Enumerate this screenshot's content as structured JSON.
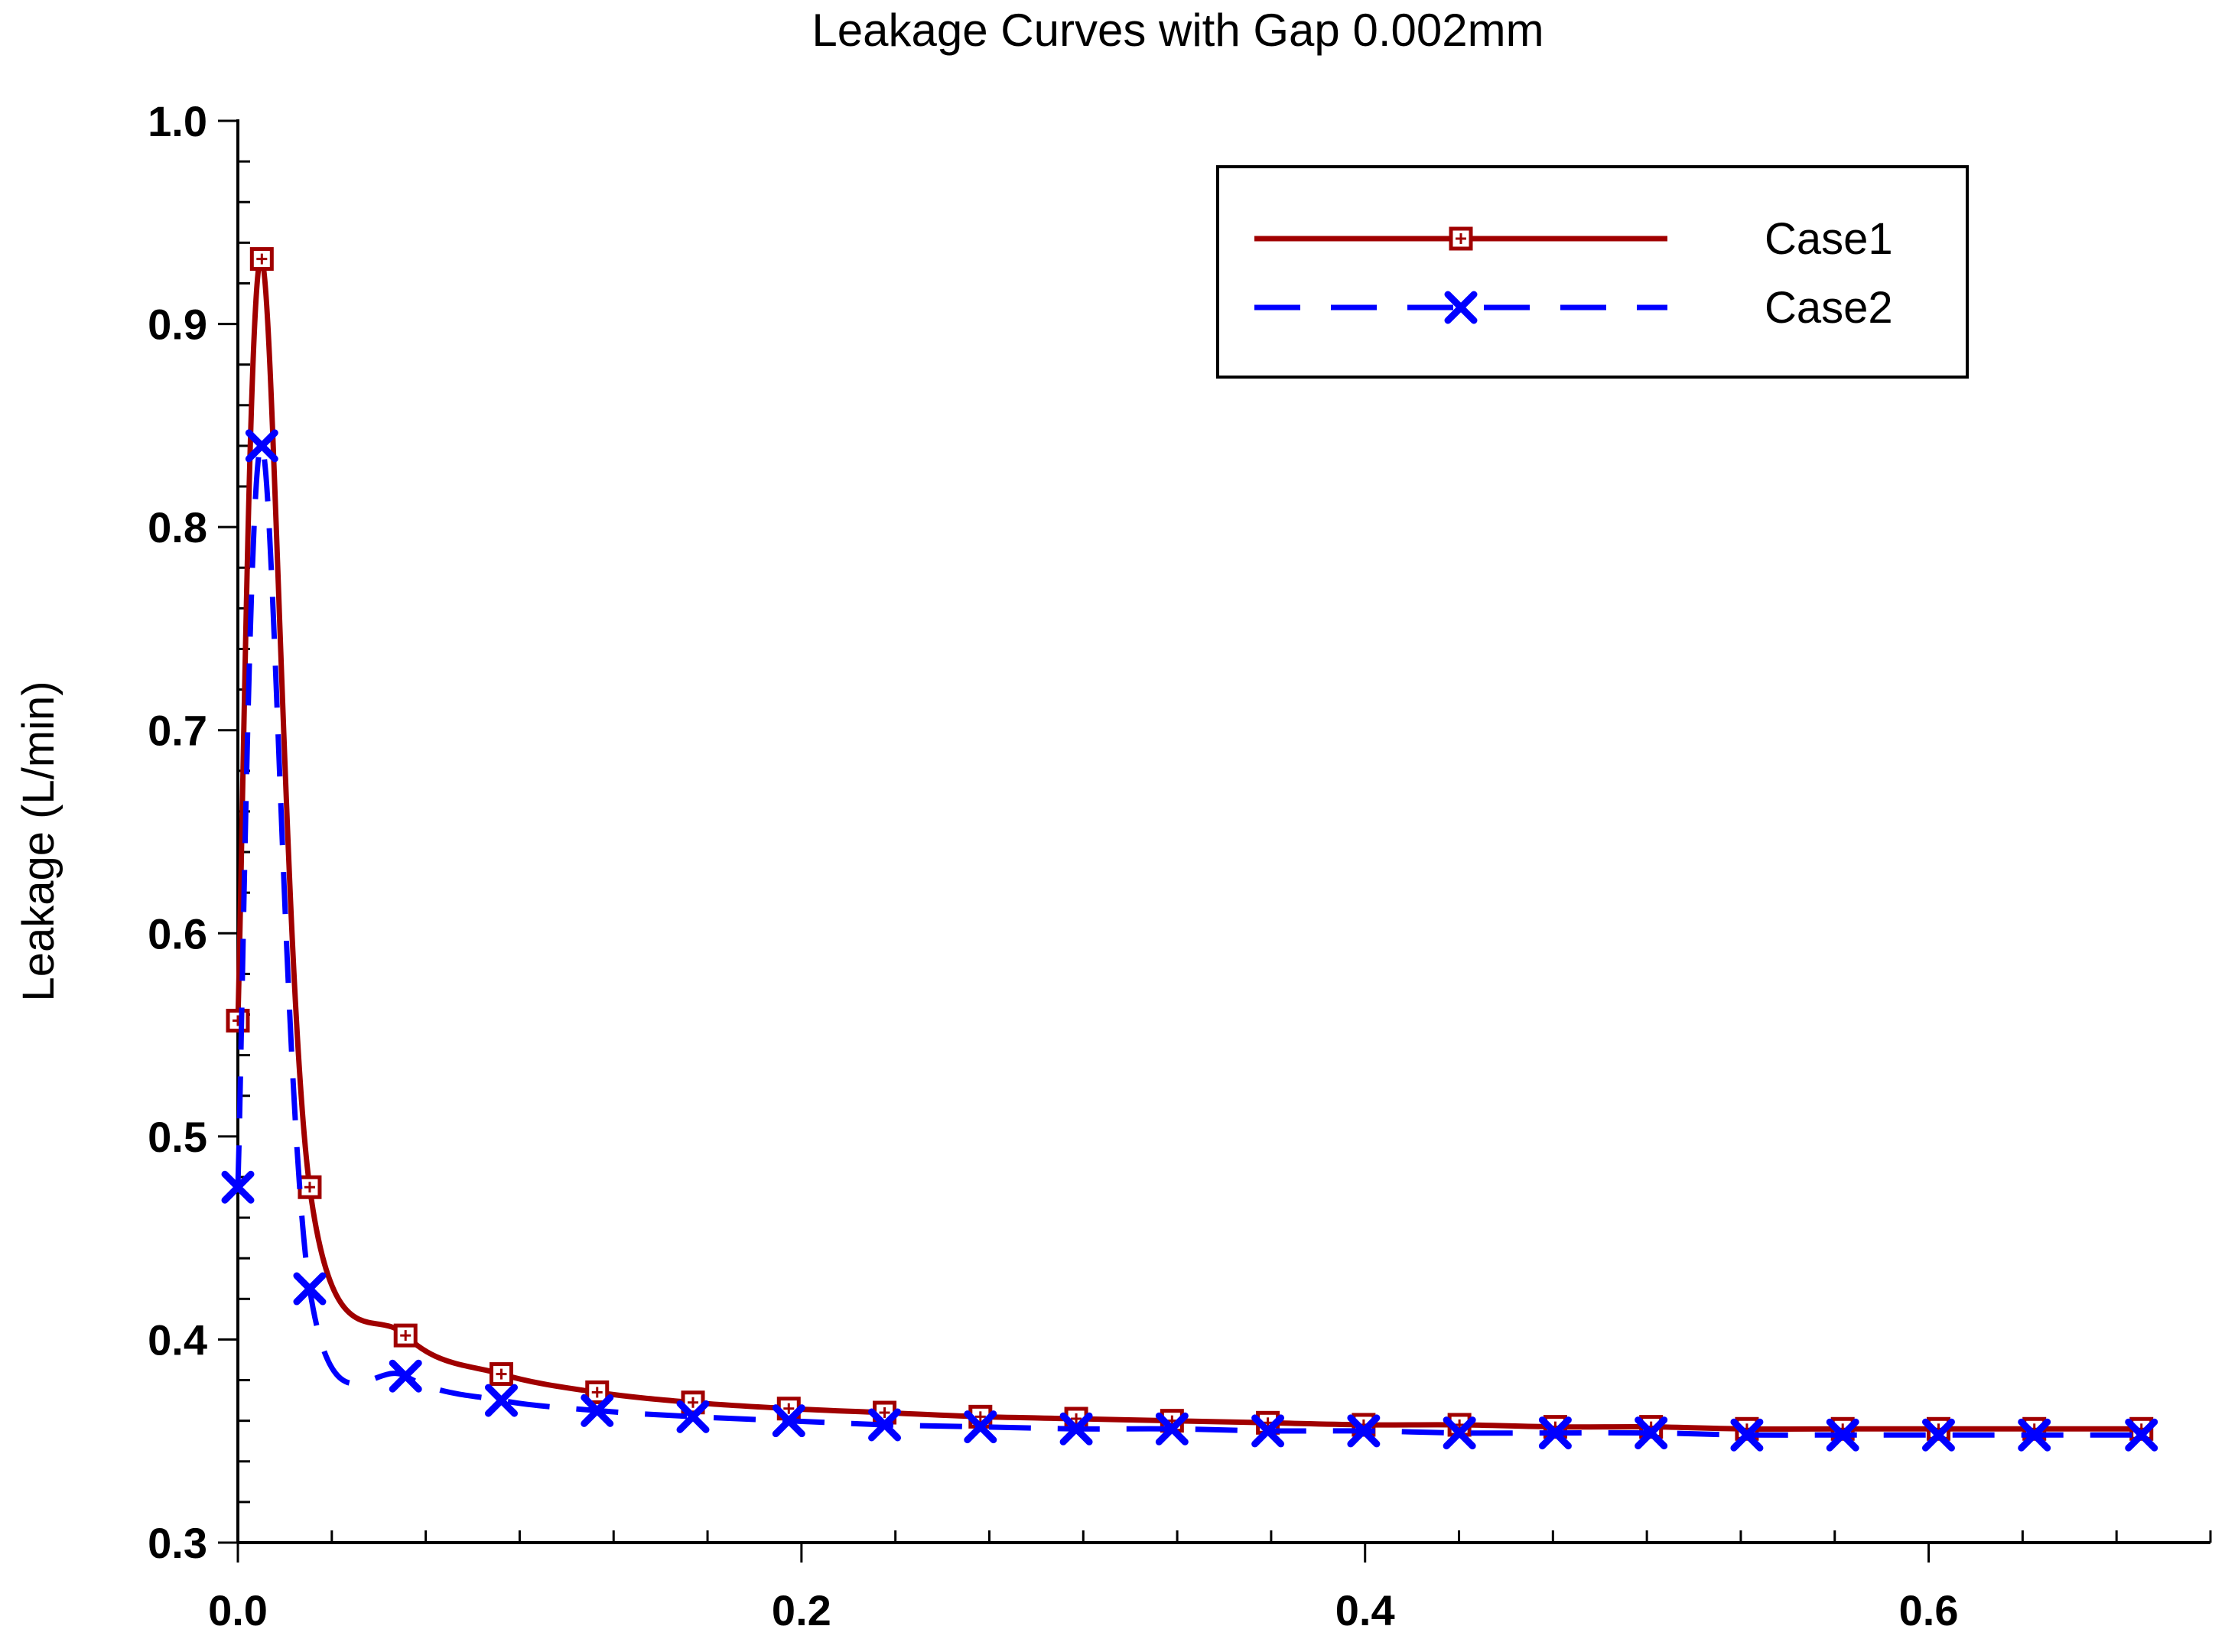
{
  "chart_data": {
    "type": "line",
    "title": "Leakage Curves with Gap 0.002mm",
    "xlabel": "",
    "ylabel": "Leakage (L/min)",
    "xlim": [
      0.0,
      0.7
    ],
    "ylim": [
      0.3,
      1.0
    ],
    "x_ticks": [
      0.0,
      0.2,
      0.4,
      0.6
    ],
    "x_tick_labels": [
      "0.0",
      "0.2",
      "0.4",
      "0.6"
    ],
    "y_ticks": [
      0.3,
      0.4,
      0.5,
      0.6,
      0.7,
      0.8,
      0.9,
      1.0
    ],
    "y_tick_labels": [
      "0.3",
      "0.4",
      "0.5",
      "0.6",
      "0.7",
      "0.8",
      "0.9",
      "1.0"
    ],
    "legend_position": "top-right",
    "series": [
      {
        "name": "Case1",
        "color": "#a00000",
        "line_style": "solid",
        "marker": "square-cross",
        "x": [
          0.0,
          0.0085,
          0.0255,
          0.0595,
          0.0935,
          0.1275,
          0.1615,
          0.1955,
          0.2295,
          0.2635,
          0.2975,
          0.3315,
          0.3655,
          0.3995,
          0.4335,
          0.4675,
          0.5015,
          0.5355,
          0.5695,
          0.6035,
          0.6375,
          0.6755
        ],
        "y": [
          0.557,
          0.932,
          0.475,
          0.402,
          0.383,
          0.374,
          0.369,
          0.366,
          0.364,
          0.362,
          0.361,
          0.36,
          0.359,
          0.358,
          0.358,
          0.357,
          0.357,
          0.356,
          0.356,
          0.356,
          0.356,
          0.356
        ]
      },
      {
        "name": "Case2",
        "color": "#0000ff",
        "line_style": "dashed",
        "marker": "x",
        "x": [
          0.0,
          0.0085,
          0.0255,
          0.0595,
          0.0935,
          0.1275,
          0.1615,
          0.1955,
          0.2295,
          0.2635,
          0.2975,
          0.3315,
          0.3655,
          0.3995,
          0.4335,
          0.4675,
          0.5015,
          0.5355,
          0.5695,
          0.6035,
          0.6375,
          0.6755
        ],
        "y": [
          0.475,
          0.84,
          0.425,
          0.382,
          0.37,
          0.365,
          0.362,
          0.36,
          0.358,
          0.357,
          0.356,
          0.356,
          0.355,
          0.355,
          0.354,
          0.354,
          0.354,
          0.353,
          0.353,
          0.353,
          0.353,
          0.353
        ]
      }
    ]
  }
}
